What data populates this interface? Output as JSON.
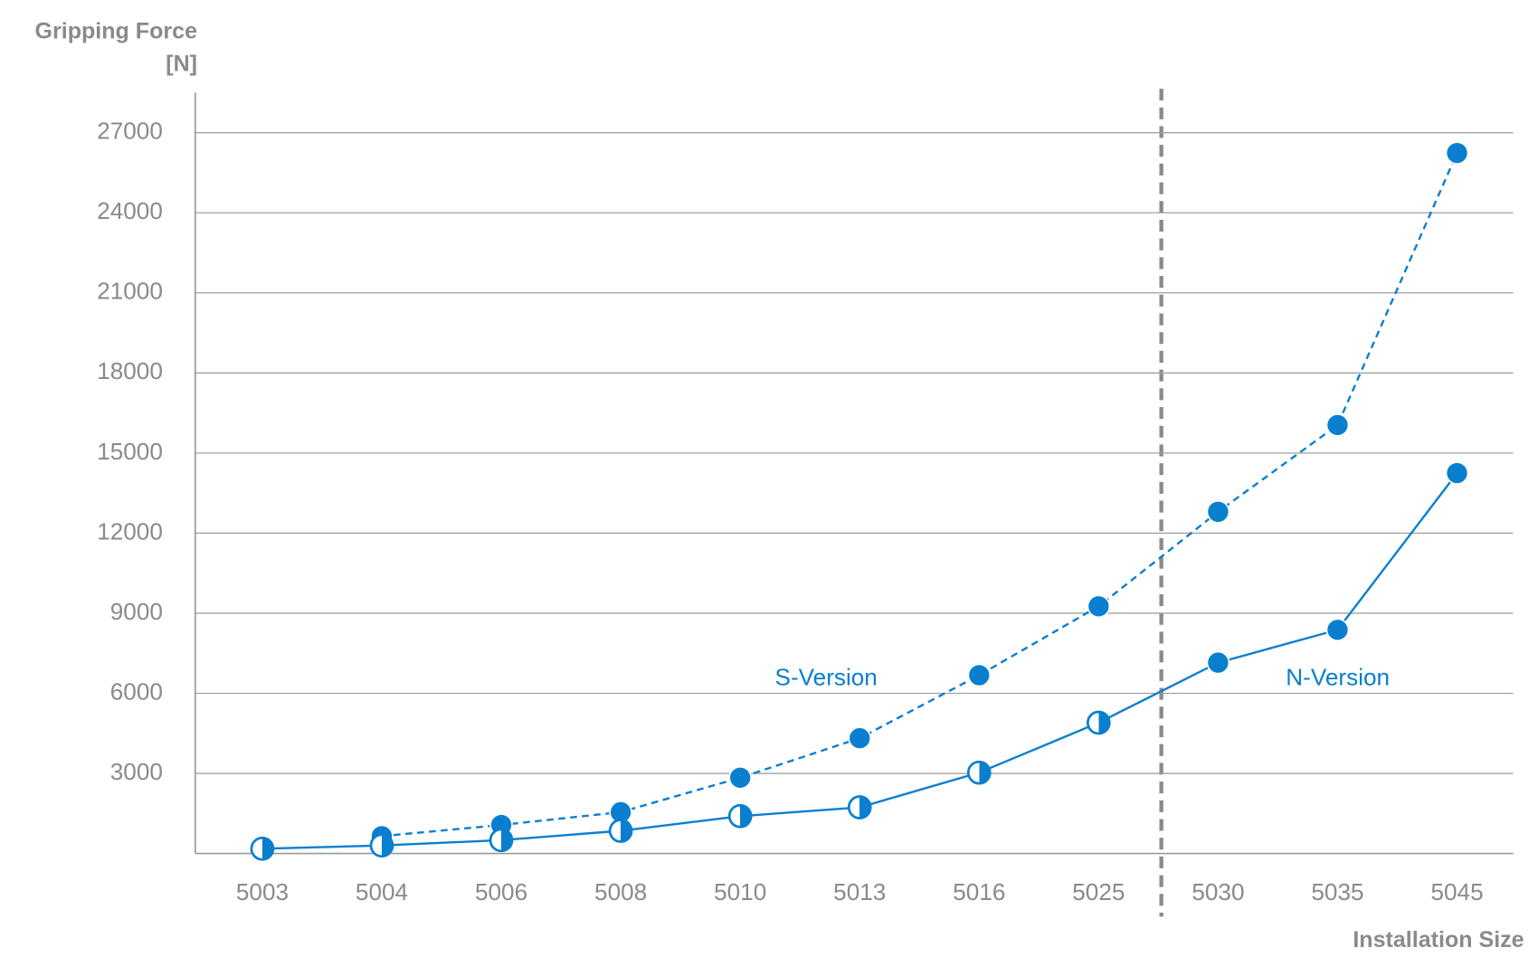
{
  "chart_data": {
    "type": "line",
    "y_label": [
      "Gripping Force",
      "[N]"
    ],
    "x_label": "Installation Size",
    "categories": [
      "5003",
      "5004",
      "5006",
      "5008",
      "5010",
      "5013",
      "5016",
      "5025",
      "5030",
      "5035",
      "5045"
    ],
    "series": [
      {
        "name": "S-Version",
        "color": "#0a7fcf",
        "line_style": "dashed",
        "markers": [
          "full",
          "full",
          "full",
          "full",
          "full",
          "full",
          "full",
          "full",
          "full",
          "full",
          "full"
        ],
        "values": [
          null,
          650,
          1070,
          1550,
          2840,
          4320,
          6680,
          9260,
          12800,
          16050,
          26240
        ]
      },
      {
        "name": "N-Version",
        "color": "#0a7fcf",
        "line_style": "solid",
        "markers": [
          "half",
          "half",
          "half",
          "half",
          "half",
          "half",
          "half",
          "half",
          "full",
          "full",
          "full"
        ],
        "values": [
          180,
          300,
          500,
          850,
          1400,
          1730,
          3030,
          4900,
          7150,
          8380,
          14250
        ]
      }
    ],
    "ylim": [
      0,
      28500
    ],
    "yticks": [
      3000,
      6000,
      9000,
      12000,
      15000,
      18000,
      21000,
      24000,
      27000
    ],
    "grid": true
  }
}
